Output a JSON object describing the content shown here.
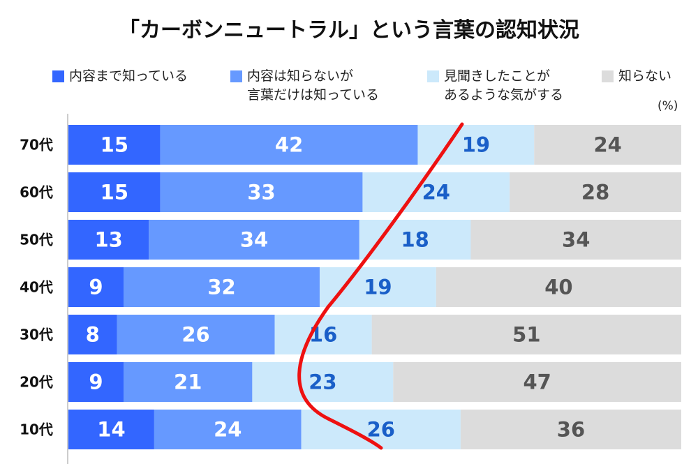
{
  "chart_data": {
    "type": "bar",
    "orientation": "horizontal",
    "stacked": true,
    "title": "「カーボンニュートラル」という言葉の認知状況",
    "unit": "(%)",
    "categories": [
      "70代",
      "60代",
      "50代",
      "40代",
      "30代",
      "20代",
      "10代"
    ],
    "series": [
      {
        "name": "内容まで知っている",
        "color": "#3366ff",
        "label_color": "#ffffff",
        "values": [
          15,
          15,
          13,
          9,
          8,
          9,
          14
        ]
      },
      {
        "name": "内容は知らないが\n言葉だけは知っている",
        "color": "#6699ff",
        "label_color": "#ffffff",
        "values": [
          42,
          33,
          34,
          32,
          26,
          21,
          24
        ]
      },
      {
        "name": "見聞きしたことが\nあるような気がする",
        "color": "#cce9fb",
        "label_color": "#1a5fc8",
        "values": [
          19,
          24,
          18,
          19,
          16,
          23,
          26
        ]
      },
      {
        "name": "知らない",
        "color": "#dcdcdc",
        "label_color": "#555555",
        "values": [
          24,
          28,
          34,
          40,
          51,
          47,
          36
        ]
      }
    ],
    "legend": "top",
    "annotation": {
      "type": "curve",
      "color": "#ee1111"
    }
  }
}
